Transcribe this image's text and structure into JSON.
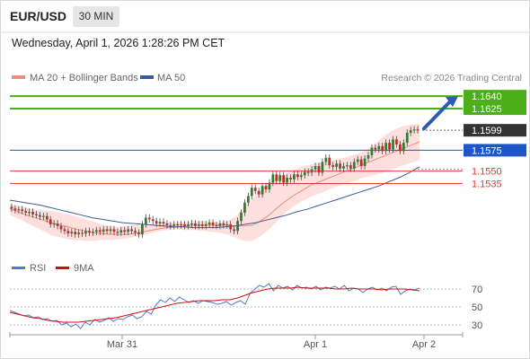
{
  "header": {
    "symbol": "EUR/USD",
    "timeframe": "30 MIN",
    "datetime": "Wednesday, April 1, 2026 1:28:26 PM CET"
  },
  "legend": {
    "ma20_label": "MA 20 + Bollinger Bands",
    "ma50_label": "MA 50",
    "credit": "Research © 2026 Trading Central",
    "rsi_label": "RSI",
    "rsi_ma_label": "9MA"
  },
  "colors": {
    "up_candle": "#2e7d32",
    "down_candle": "#c62828",
    "ma20": "#f28b82",
    "band_fill": "#fde0de",
    "ma50": "#3d5a99",
    "resistance": "#4caf1a",
    "support_red": "#e53935",
    "pivot_blue": "#1e56c8",
    "current_price": "#333333",
    "arrow": "#2b5cb0",
    "rsi": "#5577cc",
    "rsi_ma": "#cc1111"
  },
  "chart_data": [
    {
      "type": "candlestick",
      "title": "EUR/USD 30 MIN",
      "x_ticks": [
        "Mar 31",
        "Apr 1",
        "Apr 2"
      ],
      "ylim": [
        1.1432,
        1.1652
      ],
      "price_levels": [
        {
          "value": 1.164,
          "label": "1.1640",
          "role": "resistance"
        },
        {
          "value": 1.1625,
          "label": "1.1625",
          "role": "resistance"
        },
        {
          "value": 1.1599,
          "label": "1.1599",
          "role": "current"
        },
        {
          "value": 1.1575,
          "label": "1.1575",
          "role": "pivot"
        },
        {
          "value": 1.155,
          "label": "1.1550",
          "role": "support"
        },
        {
          "value": 1.1535,
          "label": "1.1535",
          "role": "support"
        }
      ],
      "closes": [
        1.1505,
        1.1503,
        1.1504,
        1.1502,
        1.15,
        1.1501,
        1.1498,
        1.1497,
        1.1495,
        1.1496,
        1.1492,
        1.1486,
        1.1487,
        1.1484,
        1.148,
        1.1478,
        1.1475,
        1.1477,
        1.1474,
        1.1476,
        1.1475,
        1.1478,
        1.1476,
        1.1477,
        1.1479,
        1.1477,
        1.148,
        1.1478,
        1.148,
        1.1477,
        1.1476,
        1.1479,
        1.1477,
        1.148,
        1.1478,
        1.1476,
        1.1474,
        1.1486,
        1.1494,
        1.1492,
        1.149,
        1.1487,
        1.1489,
        1.1487,
        1.1485,
        1.1484,
        1.1486,
        1.1485,
        1.1486,
        1.1484,
        1.1486,
        1.1487,
        1.1484,
        1.1486,
        1.1484,
        1.1486,
        1.1488,
        1.1485,
        1.1484,
        1.1487,
        1.1485,
        1.1486,
        1.148,
        1.1478,
        1.149,
        1.15,
        1.1512,
        1.152,
        1.153,
        1.1526,
        1.1522,
        1.1532,
        1.1528,
        1.1536,
        1.1546,
        1.1538,
        1.1545,
        1.1536,
        1.1542,
        1.154,
        1.1546,
        1.1543,
        1.1545,
        1.1549,
        1.1548,
        1.1552,
        1.1556,
        1.1548,
        1.1561,
        1.1566,
        1.1557,
        1.1555,
        1.1559,
        1.1553,
        1.1556,
        1.1557,
        1.1553,
        1.1561,
        1.1564,
        1.1556,
        1.1565,
        1.1569,
        1.1578,
        1.1576,
        1.158,
        1.1574,
        1.1584,
        1.1576,
        1.1588,
        1.1582,
        1.1574,
        1.1584,
        1.1596,
        1.1599,
        1.16,
        1.1599
      ],
      "ma20": [
        1.1505,
        1.1501,
        1.1497,
        1.1494,
        1.1491,
        1.1488,
        1.1485,
        1.1483,
        1.148,
        1.1478,
        1.1476,
        1.1475,
        1.1474,
        1.1474,
        1.1474,
        1.1475,
        1.1477,
        1.1479,
        1.1481,
        1.1482,
        1.1483,
        1.1484,
        1.1485,
        1.1485,
        1.1485,
        1.1485,
        1.1485,
        1.1484,
        1.1484,
        1.1485,
        1.149,
        1.1497,
        1.1506,
        1.1514,
        1.1521,
        1.1527,
        1.1533,
        1.1537,
        1.1541,
        1.1545,
        1.1549,
        1.1553,
        1.1557,
        1.1561,
        1.1565,
        1.1569,
        1.1573,
        1.1577,
        1.1581,
        1.1585
      ],
      "ma50": [
        1.1515,
        1.1513,
        1.1511,
        1.1509,
        1.1506,
        1.1503,
        1.15,
        1.1497,
        1.1494,
        1.1492,
        1.149,
        1.1488,
        1.1487,
        1.1486,
        1.1485,
        1.1484,
        1.1483,
        1.1483,
        1.1482,
        1.1482,
        1.1482,
        1.1483,
        1.1484,
        1.1486,
        1.1488,
        1.1491,
        1.1494,
        1.1497,
        1.1501,
        1.1504,
        1.1508,
        1.1512,
        1.1516,
        1.152,
        1.1524,
        1.1528,
        1.1532,
        1.1537,
        1.1542,
        1.1548,
        1.1555
      ],
      "bollinger_upper": [
        1.151,
        1.1508,
        1.1506,
        1.1504,
        1.1503,
        1.1502,
        1.15,
        1.1498,
        1.1495,
        1.1492,
        1.1489,
        1.1486,
        1.1484,
        1.1483,
        1.1484,
        1.1485,
        1.1485,
        1.1486,
        1.1487,
        1.1488,
        1.1488,
        1.1489,
        1.149,
        1.149,
        1.1489,
        1.1488,
        1.149,
        1.1496,
        1.1506,
        1.1517,
        1.1528,
        1.1536,
        1.1542,
        1.1547,
        1.1552,
        1.1556,
        1.1558,
        1.156,
        1.1562,
        1.1564,
        1.1566,
        1.1569,
        1.1572,
        1.1578,
        1.1586,
        1.1594,
        1.16,
        1.1604,
        1.1606,
        1.1607
      ],
      "bollinger_lower": [
        1.1497,
        1.1493,
        1.1488,
        1.1483,
        1.1478,
        1.1473,
        1.147,
        1.1468,
        1.1467,
        1.1466,
        1.1466,
        1.1467,
        1.1467,
        1.1468,
        1.1469,
        1.1471,
        1.1473,
        1.1476,
        1.1478,
        1.1479,
        1.148,
        1.1479,
        1.1479,
        1.1478,
        1.1477,
        1.1476,
        1.1474,
        1.147,
        1.1466,
        1.1466,
        1.1472,
        1.148,
        1.149,
        1.15,
        1.1508,
        1.1514,
        1.1519,
        1.1523,
        1.1527,
        1.1531,
        1.1534,
        1.1537,
        1.1541,
        1.1544,
        1.1546,
        1.1549,
        1.1553,
        1.1557,
        1.156,
        1.1563
      ]
    },
    {
      "type": "line",
      "title": "RSI",
      "ylim": [
        20,
        80
      ],
      "y_ticks": [
        30,
        50,
        70
      ],
      "series": [
        {
          "name": "RSI",
          "values": [
            46,
            44,
            42,
            40,
            41,
            38,
            39,
            36,
            37,
            34,
            35,
            30,
            32,
            28,
            31,
            26,
            33,
            30,
            36,
            33,
            35,
            38,
            34,
            37,
            36,
            39,
            41,
            37,
            39,
            45,
            42,
            52,
            58,
            55,
            60,
            56,
            61,
            58,
            55,
            57,
            54,
            57,
            56,
            55,
            53,
            54,
            56,
            52,
            55,
            57,
            53,
            65,
            70,
            74,
            72,
            76,
            68,
            74,
            71,
            73,
            69,
            74,
            71,
            72,
            70,
            73,
            69,
            72,
            71,
            73,
            70,
            74,
            68,
            71,
            70,
            66,
            70,
            72,
            69,
            71,
            68,
            72,
            73,
            64,
            68,
            70,
            69,
            71
          ]
        },
        {
          "name": "9MA",
          "values": [
            44,
            42,
            40,
            38,
            37,
            35,
            34,
            33,
            33,
            33,
            34,
            35,
            36,
            37,
            38,
            40,
            42,
            44,
            46,
            48,
            50,
            52,
            54,
            55,
            56,
            57,
            57,
            57,
            58,
            58,
            60,
            63,
            66,
            68,
            70,
            71,
            71,
            71,
            72,
            71,
            71,
            71,
            71,
            70,
            70,
            71,
            70,
            70,
            70,
            69,
            70,
            70,
            70,
            69,
            68
          ]
        }
      ]
    }
  ]
}
